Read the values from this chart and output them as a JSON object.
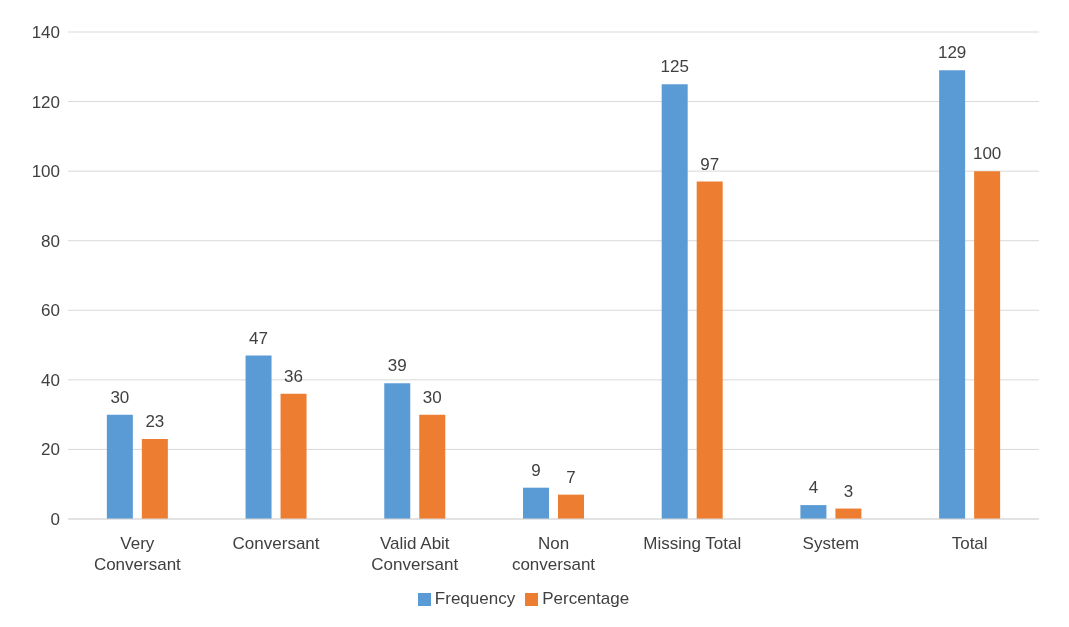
{
  "chart_data": {
    "type": "bar",
    "categories": [
      "Very Conversant",
      "Conversant",
      "Valid Abit Conversant",
      "Non conversant",
      "Missing Total",
      "System",
      "Total"
    ],
    "series": [
      {
        "name": "Frequency",
        "color": "#5b9bd5",
        "values": [
          30,
          47,
          39,
          9,
          125,
          4,
          129
        ]
      },
      {
        "name": "Percentage",
        "color": "#ed7d31",
        "values": [
          23,
          36,
          30,
          7,
          97,
          3,
          100
        ]
      }
    ],
    "ylim": [
      0,
      140
    ],
    "yticks": [
      0,
      20,
      40,
      60,
      80,
      100,
      120,
      140
    ],
    "grid": "y",
    "legend": "bottom",
    "data_labels": true
  }
}
